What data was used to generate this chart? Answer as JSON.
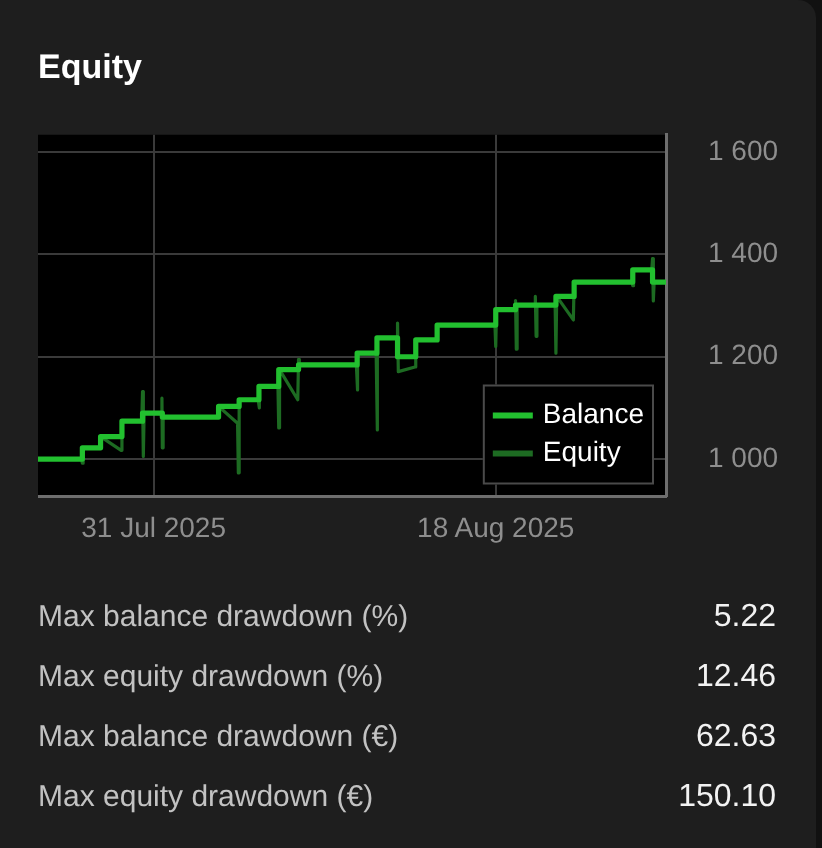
{
  "chart_data": {
    "type": "line",
    "title": "Equity",
    "xlim": [
      "2025-07-24T22:00",
      "2025-08-26T23:00"
    ],
    "xticks": [
      {
        "value": "2025-07-31",
        "label": "31 Jul 2025"
      },
      {
        "value": "2025-08-18",
        "label": "18 Aug 2025"
      }
    ],
    "ylim": [
      927,
      1634
    ],
    "yticks": [
      {
        "value": 1000,
        "label": "1 000"
      },
      {
        "value": 1200,
        "label": "1 200"
      },
      {
        "value": 1400,
        "label": "1 400"
      },
      {
        "value": 1600,
        "label": "1 600"
      }
    ],
    "grid": true,
    "legend": "bottom right",
    "marker": "none",
    "series": [
      {
        "name": "Balance",
        "type": "step",
        "color": "#22c02f",
        "x": [
          "2025-07-24T22:00",
          "2025-07-27T06:00",
          "2025-07-28T05:00",
          "2025-07-29T08:00",
          "2025-07-30T10:00",
          "2025-07-31T11:00",
          "2025-08-03T10:00",
          "2025-08-04T12:00",
          "2025-08-05T13:00",
          "2025-08-06T14:00",
          "2025-08-07T15:00",
          "2025-08-10T17:00",
          "2025-08-11T18:00",
          "2025-08-12T20:00",
          "2025-08-13T19:00",
          "2025-08-14T22:00",
          "2025-08-18T00:00",
          "2025-08-19T01:00",
          "2025-08-21T04:00",
          "2025-08-22T03:00",
          "2025-08-25T05:00",
          "2025-08-26T06:00",
          "2025-08-26T23:00"
        ],
        "values": [
          1000,
          1022,
          1044,
          1074,
          1090,
          1082,
          1103,
          1116,
          1142,
          1175,
          1184,
          1207,
          1237,
          1200,
          1233,
          1262,
          1292,
          1301,
          1318,
          1346,
          1370,
          1346,
          1346
        ]
      },
      {
        "name": "Equity",
        "type": "line",
        "color": "#1d6b22",
        "x": [
          "2025-07-24T22:00",
          "2025-07-27T05:00",
          "2025-07-27T06:00",
          "2025-07-27T07:00",
          "2025-07-28T04:00",
          "2025-07-28T05:00",
          "2025-07-29T07:00",
          "2025-07-29T08:00",
          "2025-07-30T09:00",
          "2025-07-30T10:00",
          "2025-07-30T11:00",
          "2025-07-30T12:00",
          "2025-07-31T10:00",
          "2025-07-31T10:30",
          "2025-07-31T11:00",
          "2025-07-31T12:00",
          "2025-08-03T09:00",
          "2025-08-03T10:00",
          "2025-08-04T10:00",
          "2025-08-04T11:00",
          "2025-08-04T12:00",
          "2025-08-05T12:00",
          "2025-08-05T13:00",
          "2025-08-05T14:00",
          "2025-08-06T13:00",
          "2025-08-06T14:00",
          "2025-08-06T15:00",
          "2025-08-07T14:00",
          "2025-08-07T15:00",
          "2025-08-07T16:00",
          "2025-08-10T16:00",
          "2025-08-10T17:00",
          "2025-08-10T18:00",
          "2025-08-11T17:00",
          "2025-08-11T18:00",
          "2025-08-11T19:00",
          "2025-08-12T19:00",
          "2025-08-12T20:00",
          "2025-08-12T21:00",
          "2025-08-13T18:00",
          "2025-08-13T19:00",
          "2025-08-14T21:00",
          "2025-08-14T22:00",
          "2025-08-17T23:00",
          "2025-08-18T00:00",
          "2025-08-18T01:00",
          "2025-08-19T00:00",
          "2025-08-19T01:00",
          "2025-08-19T02:00",
          "2025-08-19T03:00",
          "2025-08-20T01:00",
          "2025-08-20T02:00",
          "2025-08-20T03:00",
          "2025-08-20T04:00",
          "2025-08-21T03:00",
          "2025-08-21T04:00",
          "2025-08-21T05:00",
          "2025-08-22T02:00",
          "2025-08-22T03:00",
          "2025-08-25T04:00",
          "2025-08-25T05:00",
          "2025-08-25T06:00",
          "2025-08-26T05:00",
          "2025-08-26T06:00",
          "2025-08-26T07:00",
          "2025-08-26T08:00",
          "2025-08-26T23:00"
        ],
        "values": [
          1000,
          1000,
          992,
          1022,
          1022,
          1044,
          1017,
          1074,
          1074,
          1132,
          1005,
          1090,
          1090,
          1119,
          1022,
          1082,
          1082,
          1103,
          1070,
          973,
          1116,
          1116,
          1100,
          1142,
          1142,
          1061,
          1175,
          1116,
          1195,
          1184,
          1184,
          1135,
          1207,
          1207,
          1057,
          1237,
          1237,
          1266,
          1171,
          1180,
          1233,
          1233,
          1262,
          1262,
          1220,
          1292,
          1292,
          1310,
          1215,
          1301,
          1301,
          1318,
          1240,
          1301,
          1301,
          1207,
          1318,
          1272,
          1346,
          1346,
          1339,
          1370,
          1370,
          1392,
          1309,
          1346,
          1346
        ]
      }
    ],
    "annotations": [
      "Max balance drawdown (%)",
      "5.22",
      "Max equity drawdown (%)",
      "12.46",
      "Max balance drawdown (€)",
      "62.63",
      "Max equity drawdown (€)",
      "150.10"
    ]
  }
}
